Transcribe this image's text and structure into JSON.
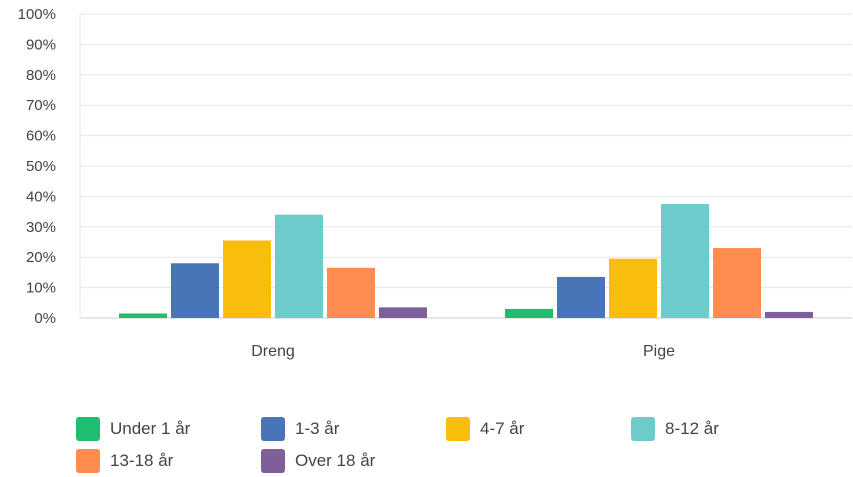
{
  "chart_data": {
    "type": "bar",
    "categories": [
      "Dreng",
      "Pige"
    ],
    "series": [
      {
        "name": "Under 1 år",
        "color": "#1dbe6f",
        "values": [
          1.5,
          3
        ]
      },
      {
        "name": "1-3 år",
        "color": "#4a74b8",
        "values": [
          18,
          13.5
        ]
      },
      {
        "name": "4-7 år",
        "color": "#f9bd0e",
        "values": [
          25.5,
          19.5
        ]
      },
      {
        "name": "8-12 år",
        "color": "#6dcbcb",
        "values": [
          34,
          37.5
        ]
      },
      {
        "name": "13-18 år",
        "color": "#ff8c4f",
        "values": [
          16.5,
          23
        ]
      },
      {
        "name": "Over 18 år",
        "color": "#7f5f99",
        "values": [
          3.5,
          2
        ]
      }
    ],
    "yticks": [
      "0%",
      "10%",
      "20%",
      "30%",
      "40%",
      "50%",
      "60%",
      "70%",
      "80%",
      "90%",
      "100%"
    ],
    "ylim": [
      0,
      100
    ],
    "grid": true,
    "legend_position": "bottom",
    "title": "",
    "xlabel": "",
    "ylabel": ""
  }
}
